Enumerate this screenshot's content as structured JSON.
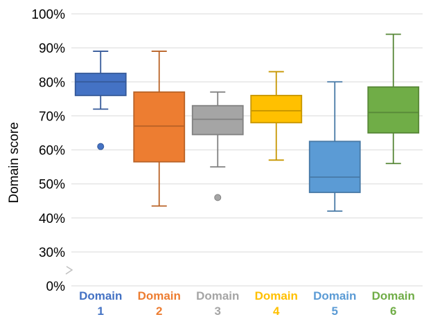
{
  "chart_data": {
    "type": "box",
    "ylabel": "Domain score",
    "y_ticks": [
      "0%",
      "30%",
      "40%",
      "50%",
      "60%",
      "70%",
      "80%",
      "90%",
      "100%"
    ],
    "y_axis_break": true,
    "grid": true,
    "categories": [
      {
        "line1": "Domain",
        "line2": "1",
        "color": "#4472C4"
      },
      {
        "line1": "Domain",
        "line2": "2",
        "color": "#ED7D31"
      },
      {
        "line1": "Domain",
        "line2": "3",
        "color": "#A5A5A5"
      },
      {
        "line1": "Domain",
        "line2": "4",
        "color": "#FFC000"
      },
      {
        "line1": "Domain",
        "line2": "5",
        "color": "#5B9BD5"
      },
      {
        "line1": "Domain",
        "line2": "6",
        "color": "#70AD47"
      }
    ],
    "boxes": [
      {
        "min": 72,
        "q1": 76,
        "median": 80,
        "q3": 82.5,
        "max": 89,
        "outliers": [
          61
        ]
      },
      {
        "min": 43.5,
        "q1": 56.5,
        "median": 67,
        "q3": 77,
        "max": 89,
        "outliers": []
      },
      {
        "min": 55,
        "q1": 64.5,
        "median": 69,
        "q3": 73,
        "max": 77,
        "outliers": [
          46
        ]
      },
      {
        "min": 57,
        "q1": 68,
        "median": 71.5,
        "q3": 76,
        "max": 83,
        "outliers": []
      },
      {
        "min": 42,
        "q1": 47.5,
        "median": 52,
        "q3": 62.5,
        "max": 80,
        "outliers": []
      },
      {
        "min": 56,
        "q1": 65,
        "median": 71,
        "q3": 78.5,
        "max": 94,
        "outliers": []
      }
    ]
  }
}
